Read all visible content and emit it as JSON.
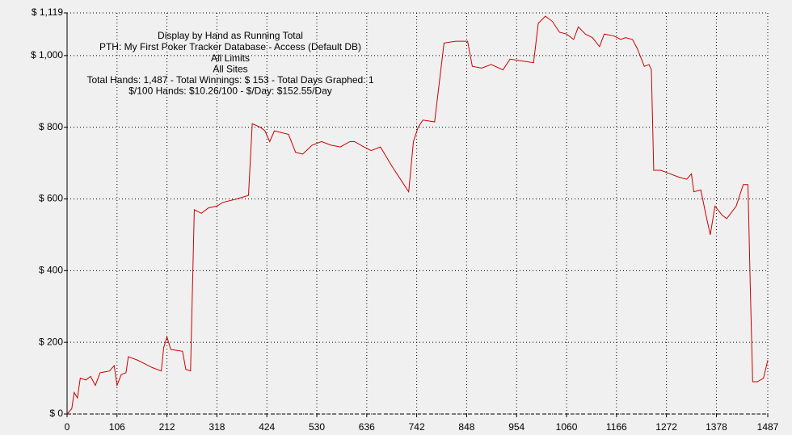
{
  "chart_data": {
    "type": "line",
    "title": "Display by Hand as Running Total",
    "subtitle_lines": [
      "PTH: My First Poker Tracker Database - Access (Default DB)",
      "All Limits",
      "All Sites",
      "Total Hands: 1,487 - Total Winnings: $ 153 - Total Days Graphed: 1",
      "$/100 Hands: $10.26/100 - $/Day: $152.55/Day"
    ],
    "x": [
      0,
      10,
      15,
      22,
      28,
      40,
      50,
      60,
      70,
      90,
      100,
      106,
      115,
      125,
      130,
      150,
      165,
      180,
      200,
      205,
      212,
      220,
      245,
      252,
      262,
      270,
      285,
      300,
      318,
      330,
      360,
      385,
      393,
      410,
      420,
      430,
      440,
      470,
      485,
      500,
      520,
      540,
      560,
      580,
      600,
      610,
      630,
      645,
      665,
      690,
      710,
      725,
      735,
      745,
      755,
      780,
      800,
      825,
      850,
      860,
      880,
      900,
      925,
      940,
      965,
      990,
      1000,
      1015,
      1030,
      1045,
      1060,
      1075,
      1085,
      1100,
      1115,
      1130,
      1140,
      1160,
      1175,
      1185,
      1200,
      1210,
      1225,
      1235,
      1240,
      1245,
      1260,
      1280,
      1300,
      1315,
      1325,
      1330,
      1345,
      1355,
      1365,
      1375,
      1390,
      1400,
      1420,
      1435,
      1445,
      1450,
      1455,
      1465,
      1478,
      1487
    ],
    "series": [
      {
        "color": "#cc0000",
        "values": [
          0,
          15,
          60,
          45,
          100,
          95,
          105,
          80,
          115,
          120,
          135,
          80,
          110,
          115,
          160,
          150,
          140,
          130,
          120,
          185,
          215,
          180,
          175,
          125,
          120,
          570,
          560,
          575,
          580,
          590,
          600,
          610,
          810,
          800,
          790,
          760,
          790,
          780,
          730,
          725,
          750,
          760,
          750,
          745,
          760,
          760,
          745,
          735,
          745,
          690,
          650,
          620,
          760,
          800,
          820,
          815,
          1035,
          1040,
          1040,
          970,
          965,
          975,
          960,
          990,
          985,
          980,
          1090,
          1110,
          1095,
          1065,
          1060,
          1045,
          1080,
          1060,
          1050,
          1025,
          1060,
          1055,
          1045,
          1050,
          1045,
          1020,
          970,
          975,
          960,
          680,
          680,
          670,
          660,
          655,
          670,
          620,
          625,
          560,
          500,
          580,
          555,
          545,
          580,
          640,
          640,
          350,
          90,
          90,
          100,
          150
        ]
      }
    ],
    "xlim": [
      0,
      1487
    ],
    "xticks": [
      0,
      106,
      212,
      318,
      424,
      530,
      636,
      742,
      848,
      954,
      1060,
      1166,
      1272,
      1378,
      1487
    ],
    "ylim": [
      0,
      1119
    ],
    "yticks": [
      {
        "value": 0,
        "label": "$ 0"
      },
      {
        "value": 200,
        "label": "$ 200"
      },
      {
        "value": 400,
        "label": "$ 400"
      },
      {
        "value": 600,
        "label": "$ 600"
      },
      {
        "value": 800,
        "label": "$ 800"
      },
      {
        "value": 1000,
        "label": "$ 1,000"
      },
      {
        "value": 1119,
        "label": "$ 1,119"
      }
    ],
    "grid": true
  }
}
